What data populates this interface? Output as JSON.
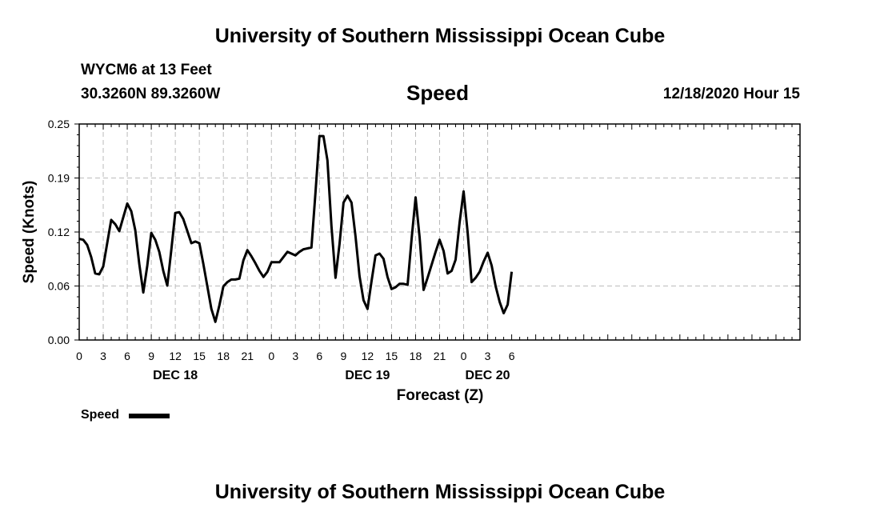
{
  "header": {
    "title": "University of Southern Mississippi Ocean Cube"
  },
  "footer": {
    "title": "University of Southern Mississippi Ocean Cube"
  },
  "station": {
    "name_depth": "WYCM6 at 13 Feet",
    "coords": "30.3260N 89.3260W"
  },
  "issued": "12/18/2020 Hour 15",
  "legend": {
    "label": "Speed"
  },
  "colors": {
    "line": "#000000",
    "grid": "#bbbbbb",
    "axis": "#000000"
  },
  "chart_data": {
    "type": "line",
    "title": "Speed",
    "xlabel": "Forecast (Z)",
    "ylabel": "Speed (Knots)",
    "xlim": [
      0,
      90
    ],
    "ylim": [
      0,
      0.25
    ],
    "yticks": [
      "0.00",
      "0.06",
      "0.12",
      "0.19",
      "0.25"
    ],
    "ytick_values": [
      0,
      0.0625,
      0.125,
      0.1875,
      0.25
    ],
    "xticks": [
      {
        "x": 0,
        "label": "0"
      },
      {
        "x": 3,
        "label": "3"
      },
      {
        "x": 6,
        "label": "6"
      },
      {
        "x": 9,
        "label": "9"
      },
      {
        "x": 12,
        "label": "12"
      },
      {
        "x": 15,
        "label": "15"
      },
      {
        "x": 18,
        "label": "18"
      },
      {
        "x": 21,
        "label": "21"
      },
      {
        "x": 24,
        "label": "0"
      },
      {
        "x": 27,
        "label": "3"
      },
      {
        "x": 30,
        "label": "6"
      },
      {
        "x": 33,
        "label": "9"
      },
      {
        "x": 36,
        "label": "12"
      },
      {
        "x": 39,
        "label": "15"
      },
      {
        "x": 42,
        "label": "18"
      },
      {
        "x": 45,
        "label": "21"
      },
      {
        "x": 48,
        "label": "0"
      },
      {
        "x": 51,
        "label": "3"
      },
      {
        "x": 54,
        "label": "6"
      }
    ],
    "date_labels": [
      {
        "x": 12,
        "label": "DEC 18"
      },
      {
        "x": 36,
        "label": "DEC 19"
      },
      {
        "x": 51,
        "label": "DEC 20"
      }
    ],
    "grid": true,
    "series": [
      {
        "name": "Speed",
        "x": [
          0,
          0.5,
          1,
          1.5,
          2,
          2.5,
          3,
          3.5,
          4,
          4.5,
          5,
          5.5,
          6,
          6.5,
          7,
          7.5,
          8,
          8.5,
          9,
          9.5,
          10,
          10.5,
          11,
          11.5,
          12,
          12.5,
          13,
          13.5,
          14,
          14.5,
          15,
          15.5,
          16,
          16.5,
          17,
          17.5,
          18,
          18.5,
          19,
          19.5,
          20,
          20.5,
          21,
          21.5,
          22,
          22.5,
          23,
          23.5,
          24,
          24.5,
          25,
          25.5,
          26,
          26.5,
          27,
          27.5,
          28,
          28.5,
          29,
          29.5,
          30,
          30.5,
          31,
          31.5,
          32,
          32.5,
          33,
          33.5,
          34,
          34.5,
          35,
          35.5,
          36,
          36.5,
          37,
          37.5,
          38,
          38.5,
          39,
          39.5,
          40,
          40.5,
          41,
          41.5,
          42,
          42.5,
          43,
          43.5,
          44,
          44.5,
          45,
          45.5,
          46,
          46.5,
          47,
          47.5,
          48,
          48.5,
          49,
          49.5,
          50,
          50.5,
          51,
          51.5,
          52,
          52.5,
          53,
          53.5,
          54
        ],
        "values": [
          0.117,
          0.116,
          0.11,
          0.096,
          0.077,
          0.076,
          0.085,
          0.112,
          0.139,
          0.134,
          0.126,
          0.142,
          0.158,
          0.149,
          0.127,
          0.088,
          0.055,
          0.086,
          0.124,
          0.116,
          0.102,
          0.08,
          0.063,
          0.104,
          0.147,
          0.148,
          0.14,
          0.126,
          0.112,
          0.114,
          0.112,
          0.088,
          0.062,
          0.036,
          0.021,
          0.04,
          0.062,
          0.067,
          0.07,
          0.07,
          0.071,
          0.092,
          0.104,
          0.097,
          0.089,
          0.08,
          0.073,
          0.079,
          0.09,
          0.09,
          0.09,
          0.096,
          0.102,
          0.1,
          0.098,
          0.102,
          0.105,
          0.106,
          0.107,
          0.17,
          0.236,
          0.236,
          0.208,
          0.132,
          0.072,
          0.111,
          0.159,
          0.167,
          0.159,
          0.12,
          0.074,
          0.046,
          0.036,
          0.068,
          0.098,
          0.1,
          0.094,
          0.073,
          0.059,
          0.061,
          0.065,
          0.065,
          0.064,
          0.117,
          0.165,
          0.119,
          0.058,
          0.072,
          0.087,
          0.102,
          0.116,
          0.103,
          0.077,
          0.08,
          0.093,
          0.136,
          0.172,
          0.125,
          0.067,
          0.072,
          0.079,
          0.091,
          0.101,
          0.086,
          0.062,
          0.044,
          0.031,
          0.041,
          0.079
        ]
      }
    ]
  }
}
